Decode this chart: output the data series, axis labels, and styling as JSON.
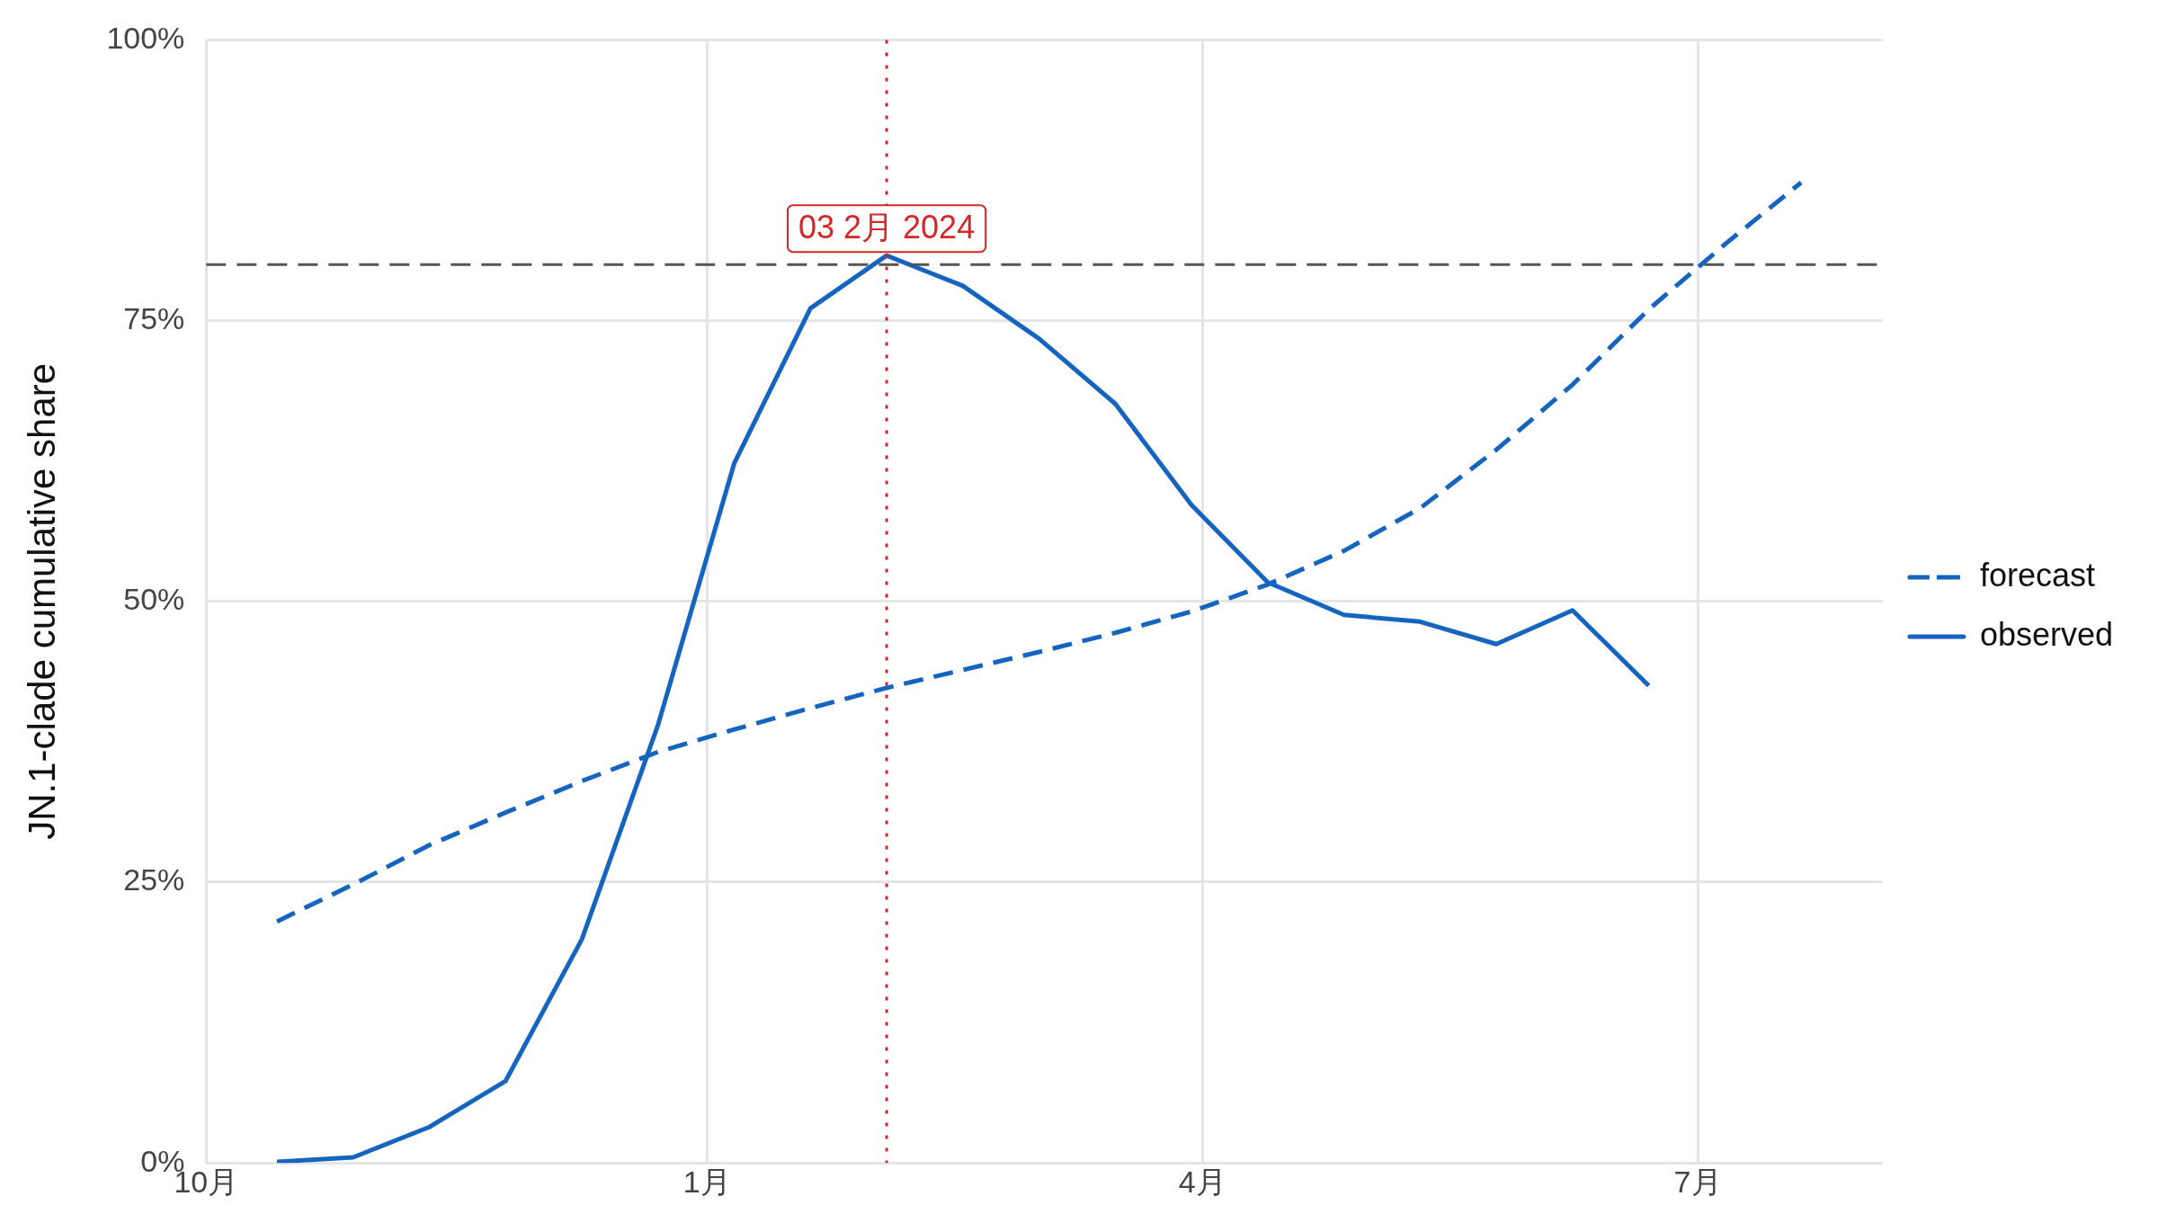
{
  "chart_data": {
    "type": "line",
    "ylabel": "JN.1-clade cumulative share",
    "x": [
      "2023-10-14",
      "2023-10-28",
      "2023-11-11",
      "2023-11-25",
      "2023-12-09",
      "2023-12-23",
      "2024-01-06",
      "2024-01-20",
      "2024-02-03",
      "2024-02-17",
      "2024-03-02",
      "2024-03-16",
      "2024-03-30",
      "2024-04-13",
      "2024-04-27",
      "2024-05-11",
      "2024-05-25",
      "2024-06-08",
      "2024-06-22",
      "2024-07-06",
      "2024-07-20"
    ],
    "series": [
      {
        "name": "forecast",
        "color": "#1565c0",
        "line_style": "dashed",
        "values": [
          21.5,
          24.8,
          28.3,
          31.2,
          34.0,
          36.6,
          38.6,
          40.5,
          42.3,
          43.9,
          45.5,
          47.2,
          49.1,
          51.5,
          54.5,
          58.3,
          63.5,
          69.3,
          76.0,
          81.8,
          87.3
        ]
      },
      {
        "name": "observed",
        "color": "#1565c0",
        "line_style": "solid",
        "values": [
          0.1,
          0.5,
          3.2,
          7.3,
          19.9,
          39,
          62.3,
          76.1,
          80.8,
          78.1,
          73.4,
          67.6,
          58.6,
          51.7,
          48.8,
          48.2,
          46.2,
          49.2,
          42.5,
          null,
          null
        ]
      }
    ],
    "xlim": [
      "2023-10-01",
      "2024-08-04"
    ],
    "xticks": [
      {
        "value": "2023-10-01",
        "label": "10月"
      },
      {
        "value": "2024-01-01",
        "label": "1月"
      },
      {
        "value": "2024-04-01",
        "label": "4月"
      },
      {
        "value": "2024-07-01",
        "label": "7月"
      }
    ],
    "ylim": [
      0,
      100
    ],
    "yticks": [
      {
        "value": 0,
        "label": "0%"
      },
      {
        "value": 25,
        "label": "25%"
      },
      {
        "value": 50,
        "label": "50%"
      },
      {
        "value": 75,
        "label": "75%"
      },
      {
        "value": 100,
        "label": "100%"
      }
    ],
    "grid": true,
    "legend": "right",
    "marker": "none",
    "ref_lines": [
      {
        "axis": "y",
        "value": 80,
        "color": "#555555",
        "line_style": "dashed"
      },
      {
        "axis": "x",
        "value": "2024-02-03",
        "label": "03 2月 2024",
        "color": "#d62728",
        "line_style": "dotted"
      }
    ]
  }
}
